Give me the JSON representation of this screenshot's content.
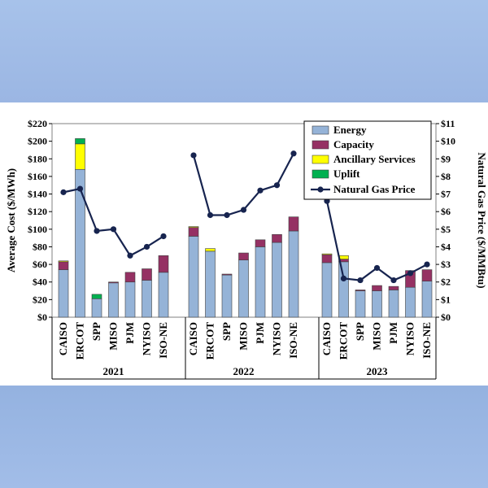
{
  "chart_data": {
    "type": "bar",
    "stacked": true,
    "groups": [
      {
        "label": "2021",
        "categories": [
          "CAISO",
          "ERCOT",
          "SPP",
          "MISO",
          "PJM",
          "NYISO",
          "ISO-NE"
        ]
      },
      {
        "label": "2022",
        "categories": [
          "CAISO",
          "ERCOT",
          "SPP",
          "MISO",
          "PJM",
          "NYISO",
          "ISO-NE"
        ]
      },
      {
        "label": "2023",
        "categories": [
          "CAISO",
          "ERCOT",
          "SPP",
          "MISO",
          "PJM",
          "NYISO",
          "ISO-NE"
        ]
      }
    ],
    "series": [
      {
        "name": "Energy",
        "color": "#95b3d7",
        "values": [
          [
            54,
            168,
            21,
            39,
            40,
            42,
            51
          ],
          [
            92,
            75,
            48,
            65,
            80,
            85,
            98
          ],
          [
            62,
            63,
            30,
            30,
            31,
            34,
            41
          ]
        ]
      },
      {
        "name": "Capacity",
        "color": "#953163",
        "values": [
          [
            9,
            0,
            0,
            1,
            11,
            13,
            19
          ],
          [
            10,
            0,
            1,
            8,
            8,
            9,
            16
          ],
          [
            9,
            3,
            1,
            6,
            4,
            19,
            13
          ]
        ]
      },
      {
        "name": "Ancillary Services",
        "color": "#ffff00",
        "values": [
          [
            1,
            29,
            0,
            0,
            0,
            0,
            0
          ],
          [
            1,
            3,
            0,
            0,
            0,
            0,
            0
          ],
          [
            1,
            4,
            0,
            0,
            0,
            0,
            0
          ]
        ]
      },
      {
        "name": "Uplift",
        "color": "#00b050",
        "values": [
          [
            0,
            6,
            5,
            0,
            0,
            0,
            0
          ],
          [
            0,
            0,
            0,
            0,
            0,
            0,
            0
          ],
          [
            0,
            0,
            0,
            0,
            0,
            0,
            0
          ]
        ]
      }
    ],
    "line_series": {
      "name": "Natural Gas Price",
      "color": "#17244f",
      "axis": "right",
      "values": [
        [
          7.1,
          7.3,
          4.9,
          5.0,
          3.5,
          4.0,
          4.6
        ],
        [
          9.2,
          5.8,
          5.8,
          6.1,
          7.2,
          7.5,
          9.3
        ],
        [
          6.6,
          2.2,
          2.1,
          2.8,
          2.1,
          2.5,
          3.0
        ]
      ]
    },
    "y_left": {
      "label": "Average Cost ($/MWh)",
      "min": 0,
      "max": 220,
      "step": 20,
      "prefix": "$"
    },
    "y_right": {
      "label": "Natural Gas Price ($/MMBtu)",
      "min": 0,
      "max": 11,
      "step": 1,
      "prefix": "$"
    },
    "legend": [
      "Energy",
      "Capacity",
      "Ancillary Services",
      "Uplift",
      "Natural Gas Price"
    ],
    "legend_position": "top-right"
  }
}
